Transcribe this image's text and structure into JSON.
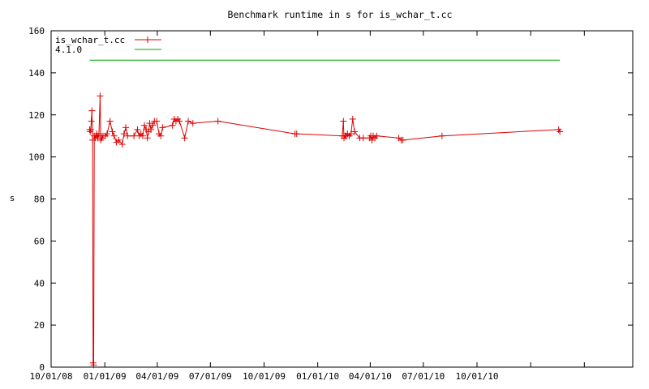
{
  "chart_data": {
    "type": "line",
    "title": "Benchmark runtime in s for is_wchar_t.cc",
    "xlabel": "",
    "ylabel": "s",
    "xlim": [
      "2008-10-01",
      "2011-06-25"
    ],
    "ylim": [
      0,
      160
    ],
    "x_ticks": [
      "10/01/08",
      "01/01/09",
      "04/01/09",
      "07/01/09",
      "10/01/09",
      "01/01/10",
      "04/01/10",
      "07/01/10",
      "10/01/10"
    ],
    "y_ticks": [
      0,
      20,
      40,
      60,
      80,
      100,
      120,
      140,
      160
    ],
    "grid": false,
    "legend_position": "top-left",
    "series": [
      {
        "name": "is_wchar_t.cc",
        "color": "#dd0000",
        "marker": "plus",
        "points": [
          [
            "2008-12-06",
            113
          ],
          [
            "2008-12-07",
            112
          ],
          [
            "2008-12-08",
            113
          ],
          [
            "2008-12-09",
            117
          ],
          [
            "2008-12-10",
            122
          ],
          [
            "2008-12-11",
            108
          ],
          [
            "2008-12-12",
            2
          ],
          [
            "2008-12-13",
            1
          ],
          [
            "2008-12-14",
            110
          ],
          [
            "2008-12-16",
            109
          ],
          [
            "2008-12-18",
            111
          ],
          [
            "2008-12-19",
            110
          ],
          [
            "2008-12-20",
            109
          ],
          [
            "2008-12-22",
            111
          ],
          [
            "2008-12-24",
            129
          ],
          [
            "2008-12-25",
            108
          ],
          [
            "2008-12-27",
            109
          ],
          [
            "2008-12-29",
            110
          ],
          [
            "2009-01-02",
            110
          ],
          [
            "2009-01-05",
            111
          ],
          [
            "2009-01-10",
            117
          ],
          [
            "2009-01-14",
            112
          ],
          [
            "2009-01-17",
            110
          ],
          [
            "2009-01-21",
            107
          ],
          [
            "2009-01-25",
            108
          ],
          [
            "2009-01-31",
            106
          ],
          [
            "2009-02-03",
            111
          ],
          [
            "2009-02-06",
            114
          ],
          [
            "2009-02-09",
            110
          ],
          [
            "2009-02-20",
            110
          ],
          [
            "2009-02-26",
            113
          ],
          [
            "2009-03-01",
            110
          ],
          [
            "2009-03-04",
            111
          ],
          [
            "2009-03-07",
            110
          ],
          [
            "2009-03-10",
            115
          ],
          [
            "2009-03-13",
            113
          ],
          [
            "2009-03-15",
            109
          ],
          [
            "2009-03-17",
            112
          ],
          [
            "2009-03-19",
            116
          ],
          [
            "2009-03-21",
            113
          ],
          [
            "2009-03-24",
            115
          ],
          [
            "2009-03-27",
            117
          ],
          [
            "2009-03-31",
            117
          ],
          [
            "2009-04-04",
            111
          ],
          [
            "2009-04-07",
            110
          ],
          [
            "2009-04-10",
            114
          ],
          [
            "2009-04-27",
            115
          ],
          [
            "2009-04-30",
            118
          ],
          [
            "2009-05-03",
            117
          ],
          [
            "2009-05-06",
            118
          ],
          [
            "2009-05-09",
            117
          ],
          [
            "2009-05-18",
            109
          ],
          [
            "2009-05-24",
            117
          ],
          [
            "2009-06-01",
            116
          ],
          [
            "2009-07-14",
            117
          ],
          [
            "2009-11-23",
            111
          ],
          [
            "2009-11-26",
            111
          ],
          [
            "2010-02-12",
            110
          ],
          [
            "2010-02-14",
            117
          ],
          [
            "2010-02-15",
            109
          ],
          [
            "2010-02-17",
            110
          ],
          [
            "2010-02-19",
            110
          ],
          [
            "2010-02-21",
            111
          ],
          [
            "2010-02-24",
            110
          ],
          [
            "2010-02-27",
            111
          ],
          [
            "2010-03-02",
            118
          ],
          [
            "2010-03-05",
            112
          ],
          [
            "2010-03-14",
            109
          ],
          [
            "2010-03-20",
            109
          ],
          [
            "2010-03-31",
            109
          ],
          [
            "2010-04-02",
            110
          ],
          [
            "2010-04-04",
            108
          ],
          [
            "2010-04-06",
            110
          ],
          [
            "2010-04-09",
            109
          ],
          [
            "2010-04-12",
            110
          ],
          [
            "2010-05-20",
            109
          ],
          [
            "2010-05-24",
            108
          ],
          [
            "2010-05-27",
            108
          ],
          [
            "2010-08-02",
            110
          ],
          [
            "2011-02-18",
            113
          ],
          [
            "2011-02-20",
            112
          ]
        ]
      },
      {
        "name": "4.1.0",
        "color": "#00a000",
        "marker": "none",
        "points": [
          [
            "2008-12-06",
            146
          ],
          [
            "2011-02-20",
            146
          ]
        ]
      }
    ]
  }
}
